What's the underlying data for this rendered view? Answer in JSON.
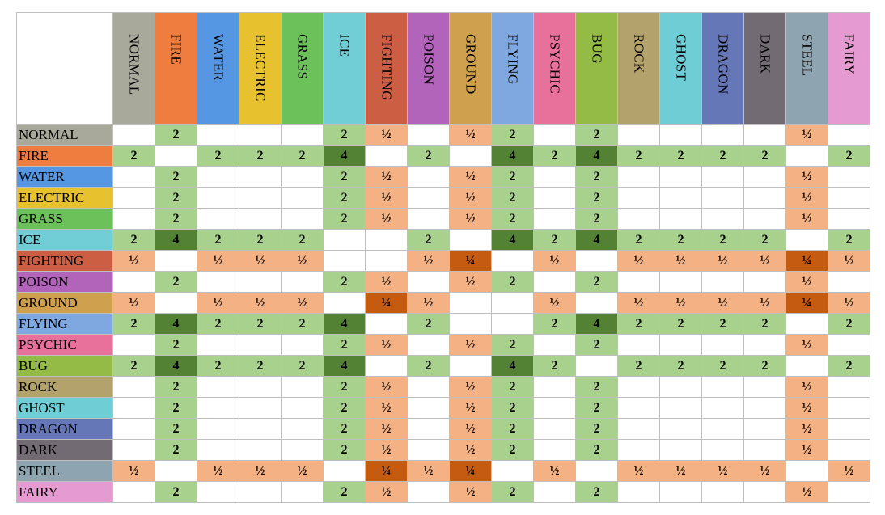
{
  "types": [
    {
      "name": "NORMAL",
      "color": "#a8a99b"
    },
    {
      "name": "FIRE",
      "color": "#ee7d3f"
    },
    {
      "name": "WATER",
      "color": "#5597e2"
    },
    {
      "name": "ELECTRIC",
      "color": "#e8c12f"
    },
    {
      "name": "GRASS",
      "color": "#6cc15b"
    },
    {
      "name": "ICE",
      "color": "#71cdd6"
    },
    {
      "name": "FIGHTING",
      "color": "#cc5e44"
    },
    {
      "name": "POISON",
      "color": "#b164b9"
    },
    {
      "name": "GROUND",
      "color": "#cfa04e"
    },
    {
      "name": "FLYING",
      "color": "#80a8e0"
    },
    {
      "name": "PSYCHIC",
      "color": "#e8719b"
    },
    {
      "name": "BUG",
      "color": "#94bb45"
    },
    {
      "name": "ROCK",
      "color": "#b3a26b"
    },
    {
      "name": "GHOST",
      "color": "#6fcdd5"
    },
    {
      "name": "DRAGON",
      "color": "#6577b6"
    },
    {
      "name": "DARK",
      "color": "#736b74"
    },
    {
      "name": "STEEL",
      "color": "#8fa4b1"
    },
    {
      "name": "FAIRY",
      "color": "#e59bd1"
    }
  ],
  "cell_colors": {
    "2": "#a9d18e",
    "4": "#548235",
    "½": "#f4b183",
    "¼": "#c55a11"
  },
  "table": {
    "rows": [
      [
        null,
        "2",
        null,
        null,
        null,
        "2",
        "½",
        null,
        "½",
        "2",
        null,
        "2",
        null,
        null,
        null,
        null,
        "½",
        null
      ],
      [
        "2",
        null,
        "2",
        "2",
        "2",
        "4",
        null,
        "2",
        null,
        "4",
        "2",
        "4",
        "2",
        "2",
        "2",
        "2",
        null,
        "2"
      ],
      [
        null,
        "2",
        null,
        null,
        null,
        "2",
        "½",
        null,
        "½",
        "2",
        null,
        "2",
        null,
        null,
        null,
        null,
        "½",
        null
      ],
      [
        null,
        "2",
        null,
        null,
        null,
        "2",
        "½",
        null,
        "½",
        "2",
        null,
        "2",
        null,
        null,
        null,
        null,
        "½",
        null
      ],
      [
        null,
        "2",
        null,
        null,
        null,
        "2",
        "½",
        null,
        "½",
        "2",
        null,
        "2",
        null,
        null,
        null,
        null,
        "½",
        null
      ],
      [
        "2",
        "4",
        "2",
        "2",
        "2",
        null,
        null,
        "2",
        null,
        "4",
        "2",
        "4",
        "2",
        "2",
        "2",
        "2",
        null,
        "2"
      ],
      [
        "½",
        null,
        "½",
        "½",
        "½",
        null,
        null,
        "½",
        "¼",
        null,
        "½",
        null,
        "½",
        "½",
        "½",
        "½",
        "¼",
        "½"
      ],
      [
        null,
        "2",
        null,
        null,
        null,
        "2",
        "½",
        null,
        "½",
        "2",
        null,
        "2",
        null,
        null,
        null,
        null,
        "½",
        null
      ],
      [
        "½",
        null,
        "½",
        "½",
        "½",
        null,
        "¼",
        "½",
        null,
        null,
        "½",
        null,
        "½",
        "½",
        "½",
        "½",
        "¼",
        "½"
      ],
      [
        "2",
        "4",
        "2",
        "2",
        "2",
        "4",
        null,
        "2",
        null,
        null,
        "2",
        "4",
        "2",
        "2",
        "2",
        "2",
        null,
        "2"
      ],
      [
        null,
        "2",
        null,
        null,
        null,
        "2",
        "½",
        null,
        "½",
        "2",
        null,
        "2",
        null,
        null,
        null,
        null,
        "½",
        null
      ],
      [
        "2",
        "4",
        "2",
        "2",
        "2",
        "4",
        null,
        "2",
        null,
        "4",
        "2",
        null,
        "2",
        "2",
        "2",
        "2",
        null,
        "2"
      ],
      [
        null,
        "2",
        null,
        null,
        null,
        "2",
        "½",
        null,
        "½",
        "2",
        null,
        "2",
        null,
        null,
        null,
        null,
        "½",
        null
      ],
      [
        null,
        "2",
        null,
        null,
        null,
        "2",
        "½",
        null,
        "½",
        "2",
        null,
        "2",
        null,
        null,
        null,
        null,
        "½",
        null
      ],
      [
        null,
        "2",
        null,
        null,
        null,
        "2",
        "½",
        null,
        "½",
        "2",
        null,
        "2",
        null,
        null,
        null,
        null,
        "½",
        null
      ],
      [
        null,
        "2",
        null,
        null,
        null,
        "2",
        "½",
        null,
        "½",
        "2",
        null,
        "2",
        null,
        null,
        null,
        null,
        "½",
        null
      ],
      [
        "½",
        null,
        "½",
        "½",
        "½",
        null,
        "¼",
        "½",
        "¼",
        null,
        "½",
        null,
        "½",
        "½",
        "½",
        "½",
        null,
        "½"
      ],
      [
        null,
        "2",
        null,
        null,
        null,
        "2",
        "½",
        null,
        "½",
        "2",
        null,
        "2",
        null,
        null,
        null,
        null,
        "½",
        null
      ]
    ]
  }
}
